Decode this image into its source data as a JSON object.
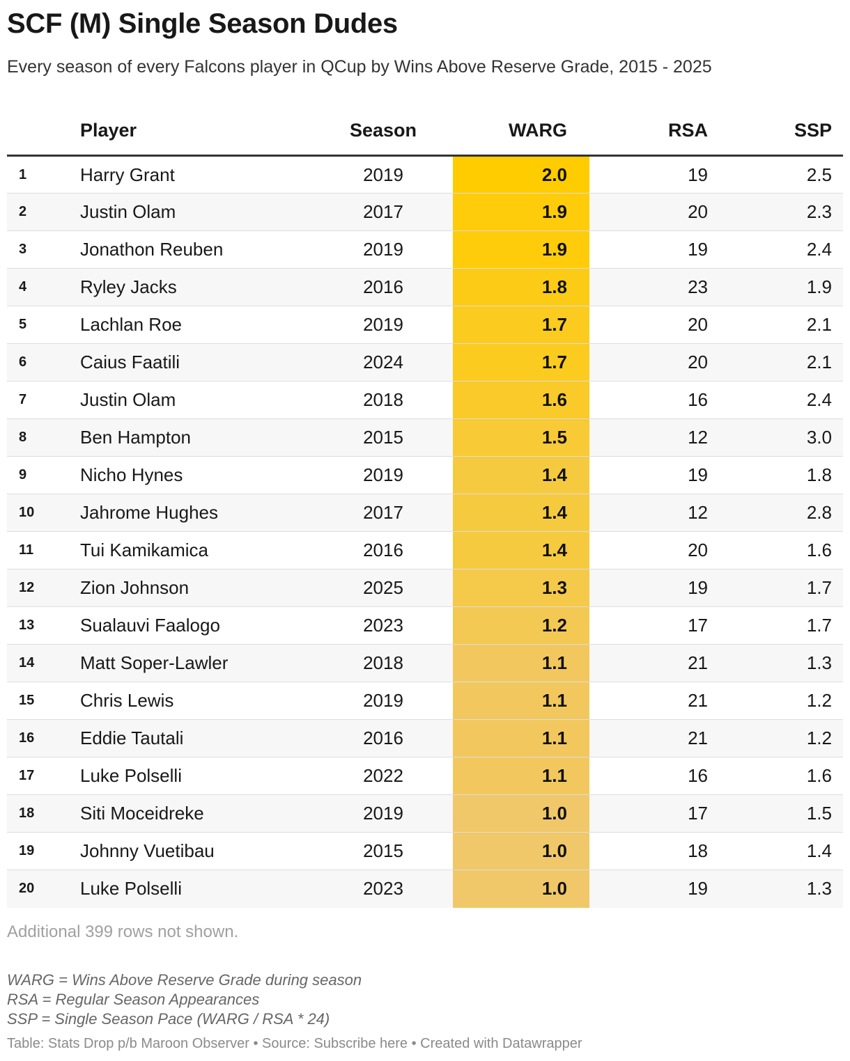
{
  "title": "SCF (M) Single Season Dudes",
  "subtitle": "Every season of every Falcons player in QCup by Wins Above Reserve Grade, 2015 - 2025",
  "columns": {
    "player": "Player",
    "season": "Season",
    "warg": "WARG",
    "rsa": "RSA",
    "ssp": "SSP"
  },
  "colors": {
    "warg_max": "#ffcc00",
    "warg_min": "#f0c869"
  },
  "chart_data": {
    "type": "table",
    "warg_range": [
      1.0,
      2.0
    ],
    "rows": [
      {
        "rank": "1",
        "player": "Harry Grant",
        "season": "2019",
        "warg": "2.0",
        "rsa": "19",
        "ssp": "2.5"
      },
      {
        "rank": "2",
        "player": "Justin Olam",
        "season": "2017",
        "warg": "1.9",
        "rsa": "20",
        "ssp": "2.3"
      },
      {
        "rank": "3",
        "player": "Jonathon Reuben",
        "season": "2019",
        "warg": "1.9",
        "rsa": "19",
        "ssp": "2.4"
      },
      {
        "rank": "4",
        "player": "Ryley Jacks",
        "season": "2016",
        "warg": "1.8",
        "rsa": "23",
        "ssp": "1.9"
      },
      {
        "rank": "5",
        "player": "Lachlan Roe",
        "season": "2019",
        "warg": "1.7",
        "rsa": "20",
        "ssp": "2.1"
      },
      {
        "rank": "6",
        "player": "Caius Faatili",
        "season": "2024",
        "warg": "1.7",
        "rsa": "20",
        "ssp": "2.1"
      },
      {
        "rank": "7",
        "player": "Justin Olam",
        "season": "2018",
        "warg": "1.6",
        "rsa": "16",
        "ssp": "2.4"
      },
      {
        "rank": "8",
        "player": "Ben Hampton",
        "season": "2015",
        "warg": "1.5",
        "rsa": "12",
        "ssp": "3.0"
      },
      {
        "rank": "9",
        "player": "Nicho Hynes",
        "season": "2019",
        "warg": "1.4",
        "rsa": "19",
        "ssp": "1.8"
      },
      {
        "rank": "10",
        "player": "Jahrome Hughes",
        "season": "2017",
        "warg": "1.4",
        "rsa": "12",
        "ssp": "2.8"
      },
      {
        "rank": "11",
        "player": "Tui Kamikamica",
        "season": "2016",
        "warg": "1.4",
        "rsa": "20",
        "ssp": "1.6"
      },
      {
        "rank": "12",
        "player": "Zion Johnson",
        "season": "2025",
        "warg": "1.3",
        "rsa": "19",
        "ssp": "1.7"
      },
      {
        "rank": "13",
        "player": "Sualauvi Faalogo",
        "season": "2023",
        "warg": "1.2",
        "rsa": "17",
        "ssp": "1.7"
      },
      {
        "rank": "14",
        "player": "Matt Soper-Lawler",
        "season": "2018",
        "warg": "1.1",
        "rsa": "21",
        "ssp": "1.3"
      },
      {
        "rank": "15",
        "player": "Chris Lewis",
        "season": "2019",
        "warg": "1.1",
        "rsa": "21",
        "ssp": "1.2"
      },
      {
        "rank": "16",
        "player": "Eddie Tautali",
        "season": "2016",
        "warg": "1.1",
        "rsa": "21",
        "ssp": "1.2"
      },
      {
        "rank": "17",
        "player": "Luke Polselli",
        "season": "2022",
        "warg": "1.1",
        "rsa": "16",
        "ssp": "1.6"
      },
      {
        "rank": "18",
        "player": "Siti Moceidreke",
        "season": "2019",
        "warg": "1.0",
        "rsa": "17",
        "ssp": "1.5"
      },
      {
        "rank": "19",
        "player": "Johnny Vuetibau",
        "season": "2015",
        "warg": "1.0",
        "rsa": "18",
        "ssp": "1.4"
      },
      {
        "rank": "20",
        "player": "Luke Polselli",
        "season": "2023",
        "warg": "1.0",
        "rsa": "19",
        "ssp": "1.3"
      }
    ]
  },
  "note": "Additional 399 rows not shown.",
  "footnotes": [
    "WARG = Wins Above Reserve Grade during season",
    "RSA = Regular Season Appearances",
    "SSP = Single Season Pace (WARG / RSA * 24)"
  ],
  "credits": "Table: Stats Drop p/b Maroon Observer • Source: Subscribe here • Created with Datawrapper"
}
